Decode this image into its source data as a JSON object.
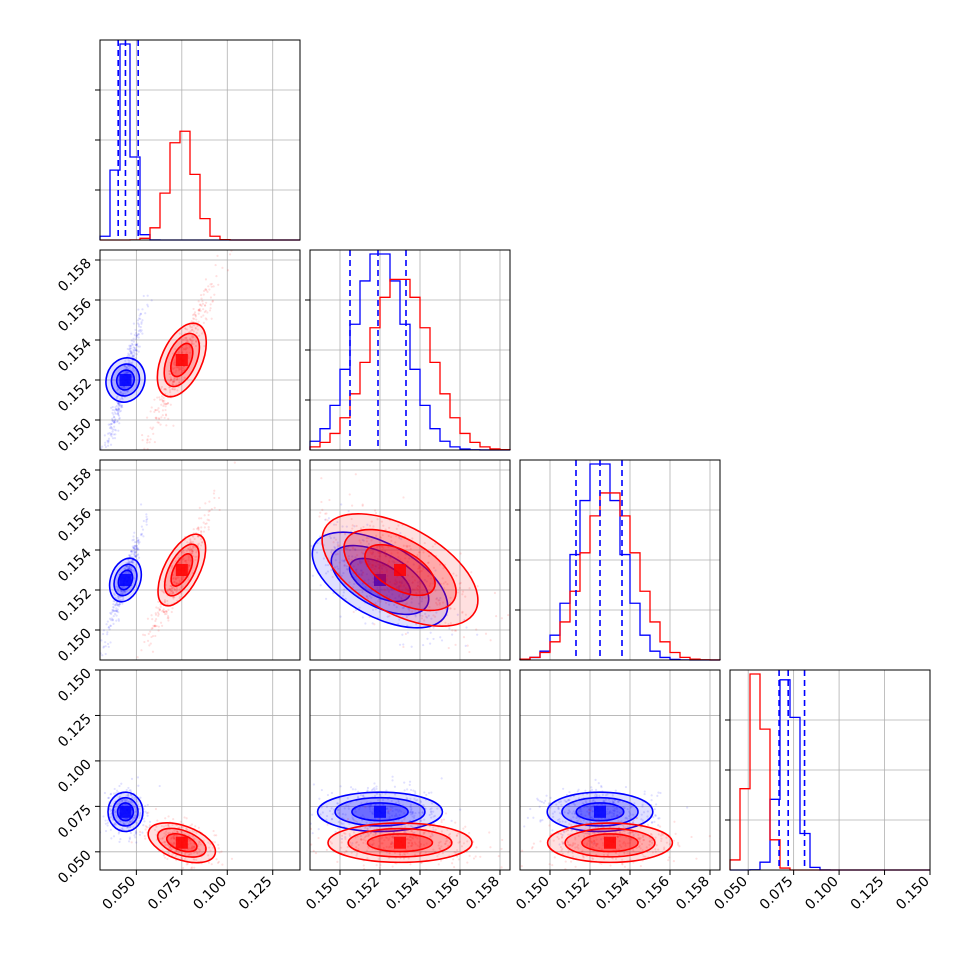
{
  "chart_data": {
    "type": "scatter",
    "subtype": "corner-plot",
    "grid": true,
    "series": [
      {
        "color": "#0000ff",
        "means": [
          0.044,
          0.152,
          0.1525,
          0.072
        ],
        "sds": [
          0.004,
          0.0013,
          0.0011,
          0.005
        ],
        "quantiles": [
          [
            0.04,
            0.044,
            0.051
          ],
          [
            0.1505,
            0.1519,
            0.1533
          ],
          [
            0.1513,
            0.1525,
            0.1536
          ],
          [
            0.067,
            0.072,
            0.081
          ]
        ],
        "ellipses": [
          {
            "pair": [
              0,
              1
            ],
            "rx": 0.006,
            "ry": 0.0025,
            "angle": -70
          },
          {
            "pair": [
              0,
              2
            ],
            "rx": 0.006,
            "ry": 0.0022,
            "angle": -72
          },
          {
            "pair": [
              1,
              2
            ],
            "rx": 0.0028,
            "ry": 0.0005,
            "angle": 40
          },
          {
            "pair": [
              0,
              3
            ],
            "rx": 0.008,
            "ry": 0.01,
            "angle": 0
          },
          {
            "pair": [
              1,
              3
            ],
            "rx": 0.0032,
            "ry": 0.009,
            "angle": 0
          },
          {
            "pair": [
              2,
              3
            ],
            "rx": 0.003,
            "ry": 0.01,
            "angle": 0
          }
        ]
      },
      {
        "color": "#ff0000",
        "means": [
          0.075,
          0.153,
          0.153,
          0.055
        ],
        "sds": [
          0.007,
          0.0015,
          0.0013,
          0.005
        ],
        "quantiles": [
          [
            0.068,
            0.075,
            0.084
          ],
          [
            0.1516,
            0.153,
            0.1546
          ],
          [
            0.1517,
            0.153,
            0.1543
          ],
          [
            0.05,
            0.055,
            0.061
          ]
        ],
        "ellipses": [
          {
            "pair": [
              0,
              1
            ],
            "rx": 0.012,
            "ry": 0.0028,
            "angle": -75
          },
          {
            "pair": [
              0,
              2
            ],
            "rx": 0.012,
            "ry": 0.0025,
            "angle": -75
          },
          {
            "pair": [
              1,
              3
            ],
            "rx": 0.003,
            "ry": 0.008,
            "angle": 0
          },
          {
            "pair": [
              0,
              3
            ],
            "rx": 0.01,
            "ry": 0.01,
            "angle": 30
          },
          {
            "pair": [
              1,
              2
            ],
            "rx": 0.003,
            "ry": 0.0005,
            "angle": 40
          },
          {
            "pair": [
              2,
              3
            ],
            "rx": 0.003,
            "ry": 0.009,
            "angle": 0
          }
        ]
      }
    ],
    "axes": [
      {
        "range": [
          0.03,
          0.14
        ],
        "ticks": [
          0.05,
          0.075,
          0.1,
          0.125
        ],
        "tick_labels": [
          "0.050",
          "0.075",
          "0.100",
          "0.125"
        ]
      },
      {
        "range": [
          0.1485,
          0.1585
        ],
        "ticks": [
          0.15,
          0.152,
          0.154,
          0.156,
          0.158
        ],
        "tick_labels": [
          "0.150",
          "0.152",
          "0.154",
          "0.156",
          "0.158"
        ]
      },
      {
        "range": [
          0.1485,
          0.1585
        ],
        "ticks": [
          0.15,
          0.152,
          0.154,
          0.156,
          0.158
        ],
        "tick_labels": [
          "0.150",
          "0.152",
          "0.154",
          "0.156",
          "0.158"
        ]
      },
      {
        "range": [
          0.04,
          0.15
        ],
        "ticks": [
          0.05,
          0.075,
          0.1,
          0.125,
          0.15
        ],
        "tick_labels": [
          "0.050",
          "0.075",
          "0.100",
          "0.125",
          "0.150"
        ]
      }
    ]
  }
}
